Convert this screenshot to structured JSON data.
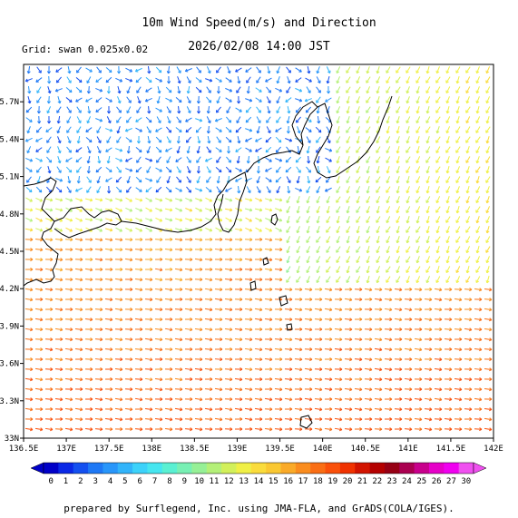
{
  "header": {
    "title": "10m Wind Speed(m/s) and Direction",
    "datetime": "2026/02/08 14:00 JST",
    "grid_label": "Grid: swan 0.025x0.02"
  },
  "axes": {
    "lon_labels": [
      "136.5E",
      "137E",
      "137.5E",
      "138E",
      "138.5E",
      "139E",
      "139.5E",
      "140E",
      "140.5E",
      "141E",
      "141.5E",
      "142E"
    ],
    "lat_labels": [
      "33N",
      "33.3N",
      "33.6N",
      "33.9N",
      "34.2N",
      "34.5N",
      "34.8N",
      "35.1N",
      "35.4N",
      "35.7N"
    ],
    "lon_range": [
      136.5,
      142.0
    ],
    "lat_range": [
      33.0,
      36.0
    ]
  },
  "colorbar": {
    "labels": [
      "0",
      "1",
      "2",
      "3",
      "4",
      "5",
      "6",
      "7",
      "8",
      "9",
      "10",
      "11",
      "12",
      "13",
      "14",
      "15",
      "16",
      "17",
      "18",
      "19",
      "20",
      "21",
      "22",
      "23",
      "24",
      "25",
      "26",
      "27",
      "30"
    ],
    "colors": [
      "#0000c8",
      "#0a28e6",
      "#1450f0",
      "#1e78f5",
      "#2896fa",
      "#32b4fa",
      "#3cd2fa",
      "#46e6f0",
      "#5af0d2",
      "#78f0b4",
      "#96f096",
      "#b4f078",
      "#d2f05a",
      "#f0f046",
      "#fadc3c",
      "#fac832",
      "#faaa28",
      "#fa8c1e",
      "#fa6e14",
      "#fa500a",
      "#f03200",
      "#d21400",
      "#b40000",
      "#960014",
      "#aa0050",
      "#c8008c",
      "#e600c8",
      "#f000f0",
      "#f050f0"
    ]
  },
  "footer": "prepared by Surflegend, Inc. using JMA-FLA, and GrADS(COLA/IGES)."
}
